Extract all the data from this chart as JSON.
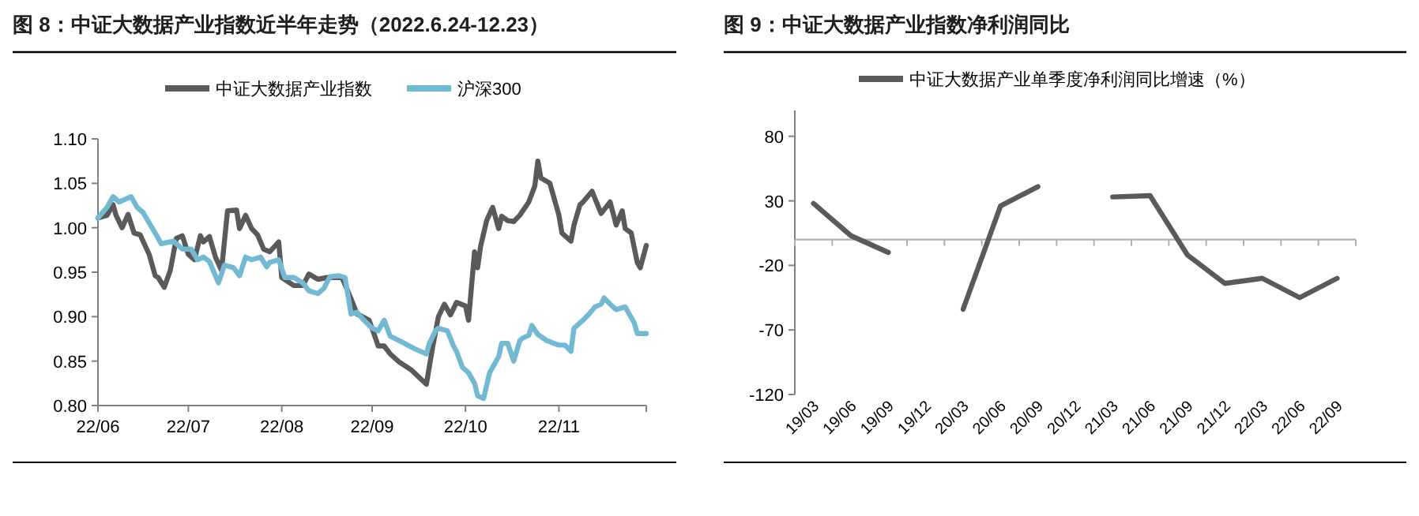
{
  "chart_data": [
    {
      "type": "line",
      "title": "图 8：中证大数据产业指数近半年走势（2022.6.24-12.23）",
      "legend": "top",
      "xlim": [
        "2022-06-24",
        "2022-12-23"
      ],
      "xticks": [
        {
          "value": "2022-06-24",
          "label": "22/06"
        },
        {
          "value": "2022-07-24",
          "label": "22/07"
        },
        {
          "value": "2022-08-24",
          "label": "22/08"
        },
        {
          "value": "2022-09-23",
          "label": "22/09"
        },
        {
          "value": "2022-10-24",
          "label": "22/10"
        },
        {
          "value": "2022-11-24",
          "label": "22/11"
        },
        {
          "value": "2022-12-23",
          "label": null
        }
      ],
      "ylim": [
        0.8,
        1.1
      ],
      "yticks": [
        {
          "value": 0.8,
          "label": "0.80"
        },
        {
          "value": 0.85,
          "label": "0.85"
        },
        {
          "value": 0.9,
          "label": "0.90"
        },
        {
          "value": 0.95,
          "label": "0.95"
        },
        {
          "value": 1.0,
          "label": "1.00"
        },
        {
          "value": 1.05,
          "label": "1.05"
        },
        {
          "value": 1.1,
          "label": "1.10"
        }
      ],
      "series": [
        {
          "name": "中证大数据产业指数",
          "color": "#5a5a5a",
          "x": [
            "2022-06-24",
            "2022-06-27",
            "2022-06-29",
            "2022-06-30",
            "2022-07-02",
            "2022-07-04",
            "2022-07-06",
            "2022-07-08",
            "2022-07-11",
            "2022-07-13",
            "2022-07-14",
            "2022-07-16",
            "2022-07-18",
            "2022-07-20",
            "2022-07-22",
            "2022-07-24",
            "2022-07-26",
            "2022-07-28",
            "2022-07-29",
            "2022-07-31",
            "2022-08-02",
            "2022-08-04",
            "2022-08-06",
            "2022-08-09",
            "2022-08-10",
            "2022-08-12",
            "2022-08-14",
            "2022-08-16",
            "2022-08-18",
            "2022-08-20",
            "2022-08-23",
            "2022-08-24",
            "2022-08-28",
            "2022-08-31",
            "2022-09-02",
            "2022-09-05",
            "2022-09-08",
            "2022-09-13",
            "2022-09-16",
            "2022-09-18",
            "2022-09-22",
            "2022-09-24",
            "2022-09-25",
            "2022-09-27",
            "2022-09-29",
            "2022-10-02",
            "2022-10-06",
            "2022-10-11",
            "2022-10-13",
            "2022-10-15",
            "2022-10-17",
            "2022-10-19",
            "2022-10-21",
            "2022-10-24",
            "2022-10-25",
            "2022-10-27",
            "2022-10-28",
            "2022-10-29",
            "2022-10-31",
            "2022-11-02",
            "2022-11-04",
            "2022-11-05",
            "2022-11-07",
            "2022-11-09",
            "2022-11-11",
            "2022-11-14",
            "2022-11-16",
            "2022-11-17",
            "2022-11-18",
            "2022-11-21",
            "2022-11-24",
            "2022-11-25",
            "2022-11-28",
            "2022-11-29",
            "2022-12-01",
            "2022-12-02",
            "2022-12-05",
            "2022-12-08",
            "2022-12-11",
            "2022-12-13",
            "2022-12-15",
            "2022-12-16",
            "2022-12-18",
            "2022-12-20",
            "2022-12-21",
            "2022-12-23"
          ],
          "values": [
            1.011,
            1.014,
            1.026,
            1.014,
            1.0,
            1.015,
            0.994,
            0.992,
            0.97,
            0.946,
            0.944,
            0.933,
            0.952,
            0.988,
            0.991,
            0.97,
            0.964,
            0.991,
            0.984,
            0.99,
            0.967,
            0.952,
            1.019,
            1.02,
            0.999,
            1.014,
            0.999,
            0.992,
            0.976,
            0.973,
            0.984,
            0.944,
            0.935,
            0.935,
            0.948,
            0.942,
            0.944,
            0.944,
            0.92,
            0.903,
            0.896,
            0.877,
            0.867,
            0.867,
            0.858,
            0.849,
            0.84,
            0.824,
            0.864,
            0.9,
            0.914,
            0.902,
            0.916,
            0.912,
            0.896,
            0.973,
            0.955,
            0.979,
            1.008,
            1.023,
            0.999,
            1.013,
            1.008,
            1.007,
            1.014,
            1.029,
            1.047,
            1.075,
            1.056,
            1.05,
            1.014,
            0.994,
            0.985,
            1.003,
            1.026,
            1.029,
            1.041,
            1.016,
            1.029,
            1.003,
            1.019,
            0.999,
            0.994,
            0.961,
            0.955,
            0.98
          ]
        },
        {
          "name": "沪深300",
          "color": "#74b9d4",
          "x": [
            "2022-06-24",
            "2022-06-27",
            "2022-06-29",
            "2022-07-01",
            "2022-07-03",
            "2022-07-05",
            "2022-07-07",
            "2022-07-09",
            "2022-07-13",
            "2022-07-15",
            "2022-07-19",
            "2022-07-22",
            "2022-07-25",
            "2022-07-27",
            "2022-07-29",
            "2022-07-31",
            "2022-08-03",
            "2022-08-05",
            "2022-08-08",
            "2022-08-10",
            "2022-08-12",
            "2022-08-14",
            "2022-08-17",
            "2022-08-19",
            "2022-08-20",
            "2022-08-23",
            "2022-08-25",
            "2022-08-28",
            "2022-08-31",
            "2022-09-02",
            "2022-09-05",
            "2022-09-07",
            "2022-09-09",
            "2022-09-12",
            "2022-09-14",
            "2022-09-16",
            "2022-09-18",
            "2022-09-20",
            "2022-09-23",
            "2022-09-25",
            "2022-09-27",
            "2022-09-29",
            "2022-10-02",
            "2022-10-07",
            "2022-10-11",
            "2022-10-12",
            "2022-10-14",
            "2022-10-15",
            "2022-10-18",
            "2022-10-20",
            "2022-10-21",
            "2022-10-23",
            "2022-10-25",
            "2022-10-27",
            "2022-10-28",
            "2022-10-30",
            "2022-11-01",
            "2022-11-04",
            "2022-11-05",
            "2022-11-07",
            "2022-11-09",
            "2022-11-11",
            "2022-11-12",
            "2022-11-14",
            "2022-11-15",
            "2022-11-17",
            "2022-11-20",
            "2022-11-24",
            "2022-11-26",
            "2022-11-28",
            "2022-11-29",
            "2022-12-01",
            "2022-12-02",
            "2022-12-04",
            "2022-12-06",
            "2022-12-08",
            "2022-12-09",
            "2022-12-11",
            "2022-12-13",
            "2022-12-16",
            "2022-12-17",
            "2022-12-19",
            "2022-12-20",
            "2022-12-23"
          ],
          "values": [
            1.011,
            1.023,
            1.035,
            1.029,
            1.032,
            1.035,
            1.023,
            1.017,
            0.994,
            0.982,
            0.985,
            0.976,
            0.976,
            0.964,
            0.967,
            0.962,
            0.938,
            0.958,
            0.955,
            0.946,
            0.967,
            0.964,
            0.967,
            0.956,
            0.961,
            0.964,
            0.944,
            0.944,
            0.938,
            0.929,
            0.926,
            0.932,
            0.945,
            0.946,
            0.944,
            0.903,
            0.905,
            0.897,
            0.887,
            0.884,
            0.896,
            0.878,
            0.873,
            0.864,
            0.858,
            0.87,
            0.884,
            0.887,
            0.884,
            0.867,
            0.861,
            0.843,
            0.837,
            0.825,
            0.811,
            0.808,
            0.837,
            0.855,
            0.87,
            0.87,
            0.85,
            0.873,
            0.876,
            0.879,
            0.89,
            0.88,
            0.873,
            0.868,
            0.868,
            0.861,
            0.887,
            0.893,
            0.896,
            0.903,
            0.911,
            0.914,
            0.921,
            0.914,
            0.908,
            0.911,
            0.905,
            0.893,
            0.881,
            0.881
          ]
        }
      ]
    },
    {
      "type": "line",
      "title": "图 9：中证大数据产业指数净利润同比",
      "legend": "top",
      "categories": [
        "19/03",
        "19/06",
        "19/09",
        "19/12",
        "20/03",
        "20/06",
        "20/09",
        "20/12",
        "21/03",
        "21/06",
        "21/09",
        "21/12",
        "22/03",
        "22/06",
        "22/09"
      ],
      "ylim": [
        -120,
        100
      ],
      "yticks": [
        -120,
        -70,
        -20,
        30,
        80
      ],
      "series": [
        {
          "name": "中证大数据产业单季度净利润同比增速（%）",
          "color": "#5a5a5a",
          "values": [
            28,
            3,
            -10,
            null,
            -54,
            26,
            41,
            null,
            33,
            34,
            -12,
            -34,
            -30,
            -45,
            -30
          ]
        }
      ]
    }
  ]
}
